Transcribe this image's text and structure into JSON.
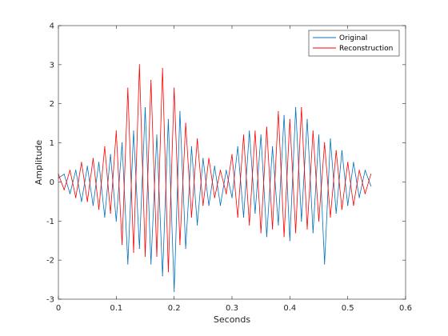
{
  "chart_data": {
    "type": "line",
    "title": "",
    "xlabel": "Seconds",
    "ylabel": "Amplitude",
    "xlim": [
      0,
      0.6
    ],
    "ylim": [
      -3,
      4
    ],
    "xticks": [
      0,
      0.1,
      0.2,
      0.3,
      0.4,
      0.5,
      0.6
    ],
    "xtick_labels": [
      "0",
      "0.1",
      "0.2",
      "0.3",
      "0.4",
      "0.5",
      "0.6"
    ],
    "yticks": [
      -3,
      -2,
      -1,
      0,
      1,
      2,
      3,
      4
    ],
    "ytick_labels": [
      "-3",
      "-2",
      "-1",
      "0",
      "1",
      "2",
      "3",
      "4"
    ],
    "grid": false,
    "legend_position": "top-right",
    "series": [
      {
        "name": "Original",
        "color": "#0072BD",
        "x": [
          0.0,
          0.01,
          0.02,
          0.03,
          0.04,
          0.05,
          0.06,
          0.07,
          0.08,
          0.09,
          0.1,
          0.11,
          0.12,
          0.13,
          0.14,
          0.15,
          0.16,
          0.17,
          0.18,
          0.19,
          0.2,
          0.21,
          0.22,
          0.23,
          0.24,
          0.25,
          0.26,
          0.27,
          0.28,
          0.29,
          0.3,
          0.31,
          0.32,
          0.33,
          0.34,
          0.35,
          0.36,
          0.37,
          0.38,
          0.39,
          0.4,
          0.41,
          0.42,
          0.43,
          0.44,
          0.45,
          0.46,
          0.47,
          0.48,
          0.49,
          0.5,
          0.51,
          0.52,
          0.53,
          0.54
        ],
        "y": [
          0.1,
          0.2,
          -0.3,
          0.3,
          -0.5,
          0.4,
          -0.6,
          0.5,
          -0.9,
          0.7,
          -1.0,
          1.0,
          -2.1,
          1.3,
          -1.7,
          1.9,
          -2.1,
          1.2,
          -2.4,
          1.6,
          -2.8,
          1.8,
          -1.7,
          0.9,
          -1.1,
          0.6,
          -0.6,
          0.4,
          -0.6,
          0.3,
          -0.4,
          0.9,
          -0.9,
          1.3,
          -0.8,
          1.2,
          -1.4,
          0.9,
          -1.1,
          1.7,
          -1.5,
          1.9,
          -1.0,
          1.6,
          -1.3,
          1.2,
          -2.1,
          1.1,
          -0.8,
          0.8,
          -0.6,
          0.5,
          -0.4,
          0.3,
          -0.1
        ]
      },
      {
        "name": "Reconstruction",
        "color": "#FF0000",
        "x": [
          0.0,
          0.01,
          0.02,
          0.03,
          0.04,
          0.05,
          0.06,
          0.07,
          0.08,
          0.09,
          0.1,
          0.11,
          0.12,
          0.13,
          0.14,
          0.15,
          0.16,
          0.17,
          0.18,
          0.19,
          0.2,
          0.21,
          0.22,
          0.23,
          0.24,
          0.25,
          0.26,
          0.27,
          0.28,
          0.29,
          0.3,
          0.31,
          0.32,
          0.33,
          0.34,
          0.35,
          0.36,
          0.37,
          0.38,
          0.39,
          0.4,
          0.41,
          0.42,
          0.43,
          0.44,
          0.45,
          0.46,
          0.47,
          0.48,
          0.49,
          0.5,
          0.51,
          0.52,
          0.53,
          0.54
        ],
        "y": [
          0.2,
          -0.2,
          0.3,
          -0.4,
          0.5,
          -0.5,
          0.6,
          -0.7,
          0.9,
          -0.8,
          1.3,
          -1.6,
          2.4,
          -1.8,
          3.0,
          -1.9,
          2.6,
          -1.9,
          2.9,
          -2.3,
          2.4,
          -1.6,
          1.5,
          -0.9,
          1.1,
          -0.6,
          0.6,
          -0.4,
          0.3,
          -0.3,
          0.7,
          -0.9,
          1.2,
          -1.1,
          1.3,
          -1.3,
          1.4,
          -1.2,
          1.8,
          -1.4,
          1.6,
          -1.3,
          1.9,
          -1.2,
          1.3,
          -1.0,
          1.0,
          -0.9,
          0.8,
          -0.7,
          0.5,
          -0.6,
          0.3,
          -0.3,
          0.2
        ]
      }
    ]
  }
}
